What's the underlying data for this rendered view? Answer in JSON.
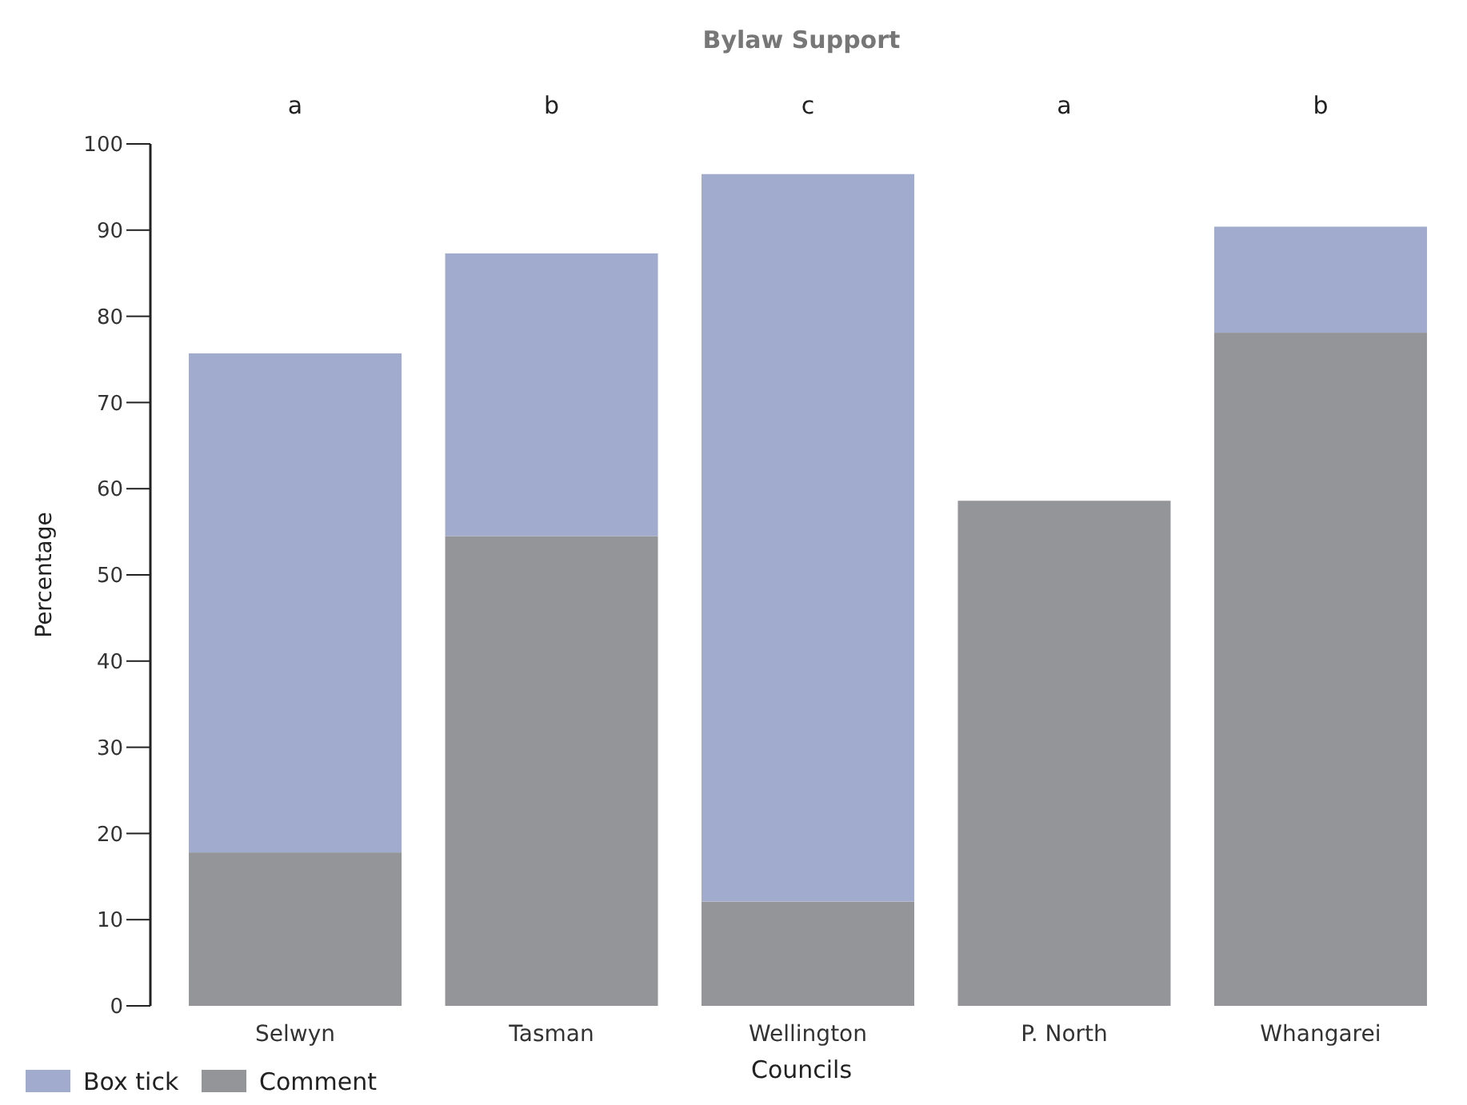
{
  "chart_data": {
    "type": "bar",
    "title": "Bylaw Support",
    "xlabel": "Councils",
    "ylabel": "Percentage",
    "categories": [
      "Selwyn",
      "Tasman",
      "Wellington",
      "P. North",
      "Whangarei"
    ],
    "stacked": true,
    "series": [
      {
        "name": "Comment",
        "color": "#949599",
        "values": [
          17.8,
          54.5,
          12.1,
          58.6,
          78.1
        ]
      },
      {
        "name": "Box tick",
        "color": "#a1abcd",
        "values": [
          57.9,
          32.8,
          84.4,
          0,
          12.3
        ]
      }
    ],
    "ylim": [
      0,
      100
    ],
    "yticks": [
      0,
      10,
      20,
      30,
      40,
      50,
      60,
      70,
      80,
      90,
      100
    ],
    "grid": false,
    "legend": "bottom left",
    "annotations": [
      "a",
      "b",
      "c",
      "a",
      "b"
    ]
  }
}
